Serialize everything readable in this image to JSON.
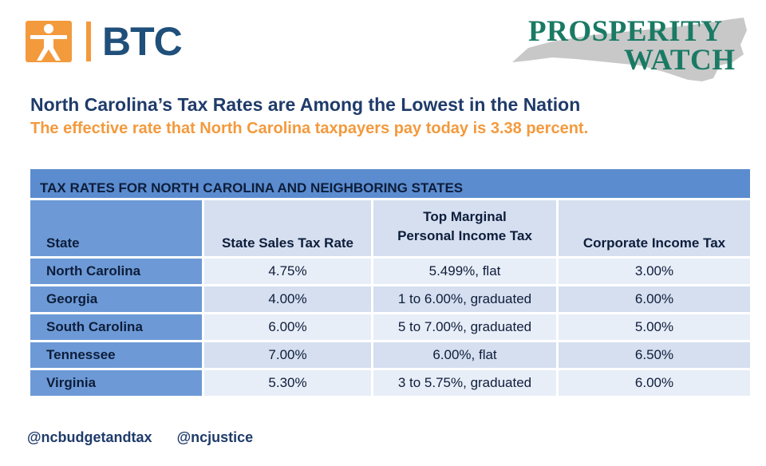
{
  "logo": {
    "text": "BTC",
    "icon": "person-figure-icon",
    "accent": "#f39a3d",
    "brand": "#1f4f7a"
  },
  "prosperity": {
    "line1": "PROSPERITY",
    "line2": "WATCH",
    "icon": "north-carolina-map-icon"
  },
  "title": "North Carolina’s Tax Rates are Among the Lowest in the Nation",
  "subtitle": "The effective rate that North Carolina taxpayers pay today is 3.38 percent.",
  "table": {
    "caption": "TAX RATES FOR NORTH CAROLINA AND NEIGHBORING STATES",
    "headers": [
      "State",
      "State Sales Tax Rate",
      "Top Marginal\nPersonal Income Tax",
      "Corporate Income Tax"
    ],
    "rows": [
      [
        "North Carolina",
        "4.75%",
        "5.499%, flat",
        "3.00%"
      ],
      [
        "Georgia",
        "4.00%",
        "1 to 6.00%, graduated",
        "6.00%"
      ],
      [
        "South Carolina",
        "6.00%",
        "5 to 7.00%, graduated",
        "5.00%"
      ],
      [
        "Tennessee",
        "7.00%",
        "6.00%, flat",
        "6.50%"
      ],
      [
        "Virginia",
        "5.30%",
        "3 to 5.75%, graduated",
        "6.00%"
      ]
    ]
  },
  "footer": {
    "handle1": "@ncbudgetandtax",
    "handle2": "@ncjustice"
  },
  "colors": {
    "title": "#1f3b6a",
    "subtitle": "#f39a3d",
    "header_dark": "#6d9ad6",
    "header_light": "#d5dff0"
  }
}
